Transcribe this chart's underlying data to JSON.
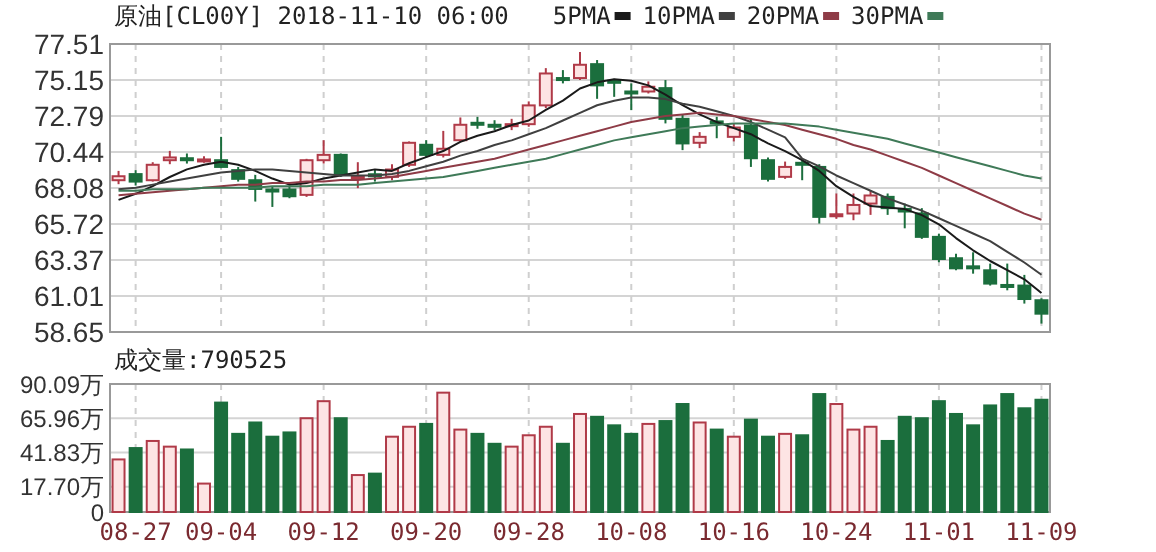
{
  "chart_data": [
    {
      "type": "candlestick",
      "title": "原油[CL00Y] 2018-11-10 06:00",
      "tick_labels": "y",
      "grid": true,
      "legend": "top",
      "categories": [
        null,
        null,
        null,
        null,
        null,
        null,
        null,
        null,
        null,
        null,
        null,
        null,
        null,
        null,
        null,
        null,
        null,
        null,
        null,
        null,
        null,
        null,
        null,
        null,
        null,
        null,
        null,
        null,
        null,
        null,
        null,
        null,
        null,
        null,
        null,
        null,
        null,
        null,
        null,
        null,
        null,
        null,
        null,
        null,
        null,
        null,
        null,
        null,
        null,
        null,
        null,
        null,
        null,
        null,
        null
      ],
      "ylim": [
        58.65,
        77.51
      ],
      "yticks": [
        58.65,
        61.01,
        63.37,
        65.72,
        68.08,
        70.44,
        72.79,
        75.15,
        77.51
      ],
      "ohlc": [
        [
          68.59,
          69.2,
          68.33,
          68.85
        ],
        [
          68.99,
          69.25,
          68.24,
          68.5
        ],
        [
          68.59,
          69.77,
          68.5,
          69.6
        ],
        [
          69.9,
          70.51,
          69.64,
          70.08
        ],
        [
          70.03,
          70.34,
          69.68,
          69.95
        ],
        [
          69.86,
          70.16,
          69.73,
          69.95
        ],
        [
          69.9,
          71.43,
          69.38,
          69.46
        ],
        [
          69.25,
          69.46,
          68.5,
          68.68
        ],
        [
          68.59,
          68.94,
          67.19,
          68.02
        ],
        [
          67.98,
          68.15,
          66.84,
          67.89
        ],
        [
          67.98,
          68.24,
          67.41,
          67.54
        ],
        [
          67.63,
          69.99,
          67.5,
          69.9
        ],
        [
          69.9,
          71.21,
          69.68,
          70.25
        ],
        [
          70.25,
          70.34,
          68.81,
          68.94
        ],
        [
          68.77,
          69.77,
          68.07,
          68.85
        ],
        [
          68.98,
          69.29,
          68.5,
          68.9
        ],
        [
          68.81,
          69.64,
          68.59,
          69.29
        ],
        [
          69.6,
          71.13,
          69.46,
          71.04
        ],
        [
          70.91,
          71.21,
          70.08,
          70.25
        ],
        [
          70.25,
          71.82,
          70.08,
          70.65
        ],
        [
          71.21,
          72.7,
          71.13,
          72.22
        ],
        [
          72.35,
          72.74,
          71.96,
          72.26
        ],
        [
          72.22,
          72.52,
          71.87,
          72.13
        ],
        [
          72.17,
          72.61,
          71.87,
          72.26
        ],
        [
          72.26,
          73.75,
          72.09,
          73.49
        ],
        [
          73.49,
          75.93,
          73.31,
          75.58
        ],
        [
          75.28,
          75.8,
          74.93,
          75.15
        ],
        [
          75.28,
          76.98,
          75.15,
          76.15
        ],
        [
          76.19,
          76.46,
          73.92,
          74.8
        ],
        [
          75.1,
          75.23,
          74.05,
          74.97
        ],
        [
          74.4,
          74.93,
          73.18,
          74.32
        ],
        [
          74.4,
          75.06,
          74.27,
          74.71
        ],
        [
          74.62,
          75.15,
          72.31,
          72.61
        ],
        [
          72.61,
          72.87,
          70.56,
          71.0
        ],
        [
          71.04,
          71.74,
          70.69,
          71.43
        ],
        [
          72.44,
          72.74,
          71.34,
          72.31
        ],
        [
          71.43,
          72.31,
          71.13,
          72.04
        ],
        [
          72.17,
          72.61,
          69.46,
          70.03
        ],
        [
          69.9,
          70.08,
          68.5,
          68.68
        ],
        [
          68.81,
          69.81,
          68.68,
          69.46
        ],
        [
          69.73,
          69.99,
          68.59,
          69.64
        ],
        [
          69.46,
          69.64,
          65.75,
          66.19
        ],
        [
          66.27,
          67.72,
          66.06,
          66.36
        ],
        [
          66.41,
          67.72,
          65.97,
          66.97
        ],
        [
          67.06,
          67.94,
          66.32,
          67.59
        ],
        [
          67.5,
          67.72,
          66.32,
          66.76
        ],
        [
          66.71,
          67.06,
          65.44,
          66.54
        ],
        [
          66.41,
          66.76,
          64.75,
          64.88
        ],
        [
          64.88,
          65.09,
          63.22,
          63.43
        ],
        [
          63.48,
          63.78,
          62.69,
          62.82
        ],
        [
          62.95,
          63.87,
          62.47,
          62.82
        ],
        [
          62.69,
          63.13,
          61.69,
          61.82
        ],
        [
          61.73,
          63.13,
          61.38,
          61.64
        ],
        [
          61.69,
          62.39,
          60.51,
          60.81
        ],
        [
          60.73,
          60.86,
          59.2,
          59.85
        ]
      ],
      "colors": [
        "#fde4e4",
        "#1b6e3d",
        "#fde4e4",
        "#fde4e4",
        "#1b6e3d",
        "#fde4e4",
        "#1b6e3d",
        "#1b6e3d",
        "#1b6e3d",
        "#1b6e3d",
        "#1b6e3d",
        "#fde4e4",
        "#fde4e4",
        "#1b6e3d",
        "#fde4e4",
        "#1b6e3d",
        "#fde4e4",
        "#fde4e4",
        "#1b6e3d",
        "#fde4e4",
        "#fde4e4",
        "#1b6e3d",
        "#1b6e3d",
        "#fde4e4",
        "#fde4e4",
        "#fde4e4",
        "#1b6e3d",
        "#fde4e4",
        "#1b6e3d",
        "#1b6e3d",
        "#1b6e3d",
        "#fde4e4",
        "#1b6e3d",
        "#1b6e3d",
        "#fde4e4",
        "#1b6e3d",
        "#fde4e4",
        "#1b6e3d",
        "#1b6e3d",
        "#fde4e4",
        "#1b6e3d",
        "#1b6e3d",
        "#fde4e4",
        "#fde4e4",
        "#fde4e4",
        "#1b6e3d",
        "#1b6e3d",
        "#1b6e3d",
        "#1b6e3d",
        "#1b6e3d",
        "#1b6e3d",
        "#1b6e3d",
        "#1b6e3d",
        "#1b6e3d",
        "#1b6e3d"
      ],
      "series": [
        {
          "type": "line",
          "name": "5PMA",
          "color": "#1a1a1a",
          "values": [
            67.3,
            67.7,
            68.2,
            68.8,
            69.3,
            69.6,
            69.8,
            69.6,
            69.2,
            68.7,
            68.3,
            68.4,
            68.7,
            68.9,
            69.1,
            69.3,
            69.2,
            69.7,
            70.1,
            70.5,
            71.1,
            71.5,
            71.8,
            72.2,
            72.5,
            73.2,
            73.8,
            74.6,
            75.0,
            75.2,
            75.1,
            74.8,
            74.2,
            73.5,
            72.9,
            72.4,
            72.0,
            71.6,
            71.0,
            70.5,
            69.9,
            69.2,
            68.2,
            67.5,
            66.9,
            66.8,
            66.7,
            66.3,
            65.7,
            64.8,
            64.0,
            63.3,
            62.7,
            62.1,
            61.2
          ]
        },
        {
          "type": "line",
          "name": "10PMA",
          "color": "#404040",
          "values": [
            68.0,
            68.1,
            68.3,
            68.5,
            68.7,
            68.9,
            69.1,
            69.2,
            69.3,
            69.3,
            69.2,
            69.1,
            69.0,
            68.9,
            68.9,
            68.9,
            69.0,
            69.2,
            69.5,
            69.8,
            70.2,
            70.5,
            70.9,
            71.2,
            71.6,
            72.0,
            72.5,
            73.0,
            73.5,
            73.8,
            74.0,
            74.0,
            73.9,
            73.6,
            73.4,
            73.1,
            72.8,
            72.4,
            71.9,
            71.4,
            70.0,
            69.5,
            68.9,
            68.4,
            67.9,
            67.4,
            67.0,
            66.6,
            66.1,
            65.6,
            65.1,
            64.6,
            63.9,
            63.2,
            62.4
          ]
        },
        {
          "type": "line",
          "name": "20PMA",
          "color": "#8e3b46",
          "values": [
            67.6,
            67.7,
            67.8,
            67.9,
            68.0,
            68.1,
            68.2,
            68.3,
            68.3,
            68.4,
            68.4,
            68.5,
            68.5,
            68.6,
            68.6,
            68.7,
            68.8,
            69.0,
            69.2,
            69.4,
            69.6,
            69.8,
            70.0,
            70.3,
            70.6,
            70.9,
            71.2,
            71.5,
            71.8,
            72.1,
            72.4,
            72.6,
            72.8,
            72.9,
            73.0,
            72.9,
            72.8,
            72.6,
            72.4,
            72.2,
            71.9,
            71.6,
            71.3,
            70.9,
            70.6,
            70.2,
            69.8,
            69.4,
            68.9,
            68.4,
            67.9,
            67.4,
            66.9,
            66.4,
            66.0
          ]
        },
        {
          "type": "line",
          "name": "30PMA",
          "color": "#3f7a58",
          "values": [
            67.9,
            67.9,
            68.0,
            68.0,
            68.0,
            68.1,
            68.1,
            68.1,
            68.1,
            68.2,
            68.2,
            68.2,
            68.3,
            68.3,
            68.3,
            68.4,
            68.5,
            68.6,
            68.7,
            68.8,
            69.0,
            69.2,
            69.4,
            69.6,
            69.8,
            70.0,
            70.3,
            70.6,
            70.9,
            71.2,
            71.4,
            71.6,
            71.8,
            72.0,
            72.1,
            72.2,
            72.3,
            72.3,
            72.3,
            72.3,
            72.2,
            72.1,
            71.9,
            71.7,
            71.5,
            71.3,
            71.0,
            70.7,
            70.4,
            70.1,
            69.8,
            69.5,
            69.2,
            68.9,
            68.7
          ]
        }
      ]
    },
    {
      "type": "bar",
      "title": "成交量:790525",
      "grid": true,
      "categories": [
        null,
        "08-27",
        null,
        null,
        null,
        null,
        "09-04",
        null,
        null,
        null,
        null,
        null,
        "09-12",
        null,
        null,
        null,
        null,
        null,
        "09-20",
        null,
        null,
        null,
        null,
        null,
        "09-28",
        null,
        null,
        null,
        null,
        null,
        "10-08",
        null,
        null,
        null,
        null,
        null,
        "10-16",
        null,
        null,
        null,
        null,
        null,
        "10-24",
        null,
        null,
        null,
        null,
        null,
        "11-01",
        null,
        null,
        null,
        null,
        null,
        "11-09"
      ],
      "ylim": [
        0,
        90.09
      ],
      "yticks": [
        0,
        {
          "value": 17.7,
          "label": "17.70万"
        },
        {
          "value": 41.83,
          "label": "41.83万"
        },
        {
          "value": 65.96,
          "label": "65.96万"
        },
        {
          "value": 90.09,
          "label": "90.09万"
        }
      ],
      "values": [
        37,
        45,
        50,
        46,
        44,
        20,
        77,
        55,
        63,
        53,
        56,
        66,
        78,
        66,
        26,
        27,
        53,
        60,
        62,
        84,
        58,
        55,
        48,
        46,
        54,
        60,
        48,
        69,
        67,
        61,
        55,
        62,
        64,
        76,
        63,
        58,
        53,
        65,
        53,
        55,
        54,
        83,
        76,
        58,
        60,
        50,
        67,
        66,
        78,
        69,
        61,
        75,
        83,
        73,
        79
      ],
      "colors": [
        "#fde4e4",
        "#1b6e3d",
        "#fde4e4",
        "#fde4e4",
        "#1b6e3d",
        "#fde4e4",
        "#1b6e3d",
        "#1b6e3d",
        "#1b6e3d",
        "#1b6e3d",
        "#1b6e3d",
        "#fde4e4",
        "#fde4e4",
        "#1b6e3d",
        "#fde4e4",
        "#1b6e3d",
        "#fde4e4",
        "#fde4e4",
        "#1b6e3d",
        "#fde4e4",
        "#fde4e4",
        "#1b6e3d",
        "#1b6e3d",
        "#fde4e4",
        "#fde4e4",
        "#fde4e4",
        "#1b6e3d",
        "#fde4e4",
        "#1b6e3d",
        "#1b6e3d",
        "#1b6e3d",
        "#fde4e4",
        "#1b6e3d",
        "#1b6e3d",
        "#fde4e4",
        "#1b6e3d",
        "#fde4e4",
        "#1b6e3d",
        "#1b6e3d",
        "#fde4e4",
        "#1b6e3d",
        "#1b6e3d",
        "#fde4e4",
        "#fde4e4",
        "#fde4e4",
        "#1b6e3d",
        "#1b6e3d",
        "#1b6e3d",
        "#1b6e3d",
        "#1b6e3d",
        "#1b6e3d",
        "#1b6e3d",
        "#1b6e3d",
        "#1b6e3d",
        "#1b6e3d"
      ]
    }
  ]
}
